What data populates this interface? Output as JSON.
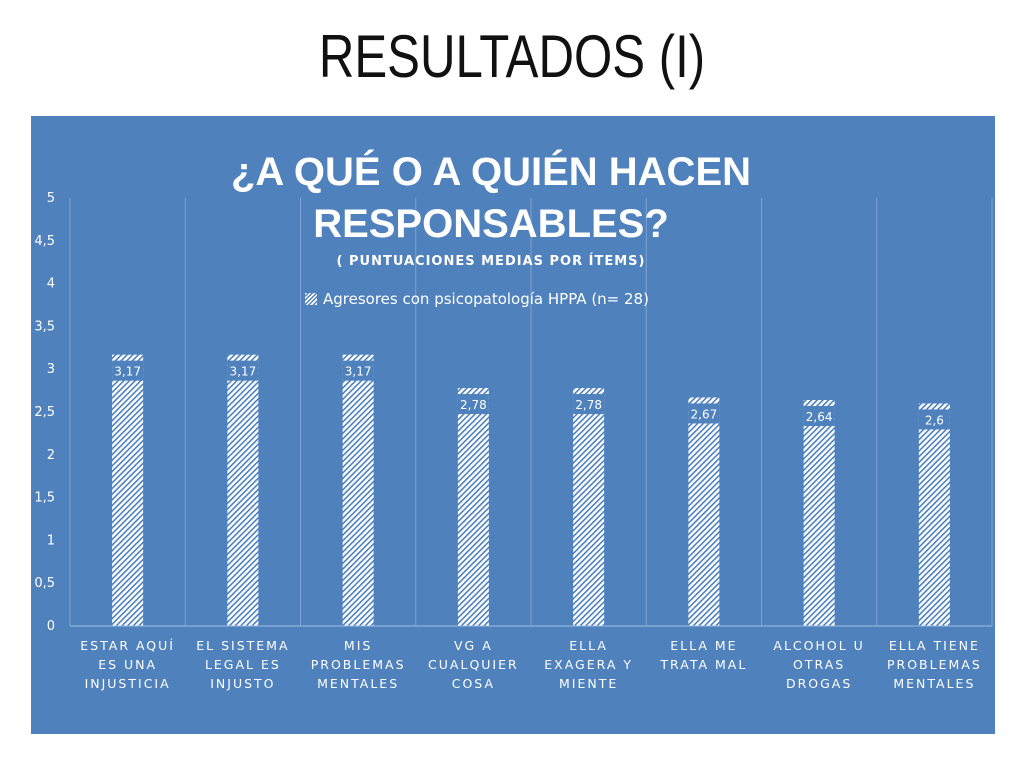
{
  "slide": {
    "title": "RESULTADOS (I)"
  },
  "chart_data": {
    "type": "bar",
    "title": "¿A QUÉ O A QUIÉN HACEN\nRESPONSABLES?",
    "subtitle": "( PUNTUACIONES MEDIAS POR ÍTEMS)",
    "categories": [
      "ESTAR AQUÍ ES UNA INJUSTICIA",
      "EL SISTEMA LEGAL ES INJUSTO",
      "MIS PROBLEMAS MENTALES",
      "VG A CUALQUIER COSA",
      "ELLA EXAGERA Y MIENTE",
      "ELLA ME TRATA MAL",
      "ALCOHOL U OTRAS DROGAS",
      "ELLA TIENE PROBLEMAS MENTALES"
    ],
    "category_lines": [
      [
        "ESTAR AQUÍ",
        "ES UNA",
        "INJUSTICIA"
      ],
      [
        "EL SISTEMA",
        "LEGAL ES",
        "INJUSTO"
      ],
      [
        "MIS",
        "PROBLEMAS",
        "MENTALES"
      ],
      [
        "VG A",
        "CUALQUIER",
        "COSA"
      ],
      [
        "ELLA",
        "EXAGERA Y",
        "MIENTE"
      ],
      [
        "ELLA ME",
        "TRATA MAL"
      ],
      [
        "ALCOHOL U",
        "OTRAS",
        "DROGAS"
      ],
      [
        "ELLA TIENE",
        "PROBLEMAS",
        "MENTALES"
      ]
    ],
    "series": [
      {
        "name": "Agresores con psicopatología HPPA (n= 28)",
        "values": [
          3.17,
          3.17,
          3.17,
          2.78,
          2.78,
          2.67,
          2.64,
          2.6
        ],
        "labels": [
          "3,17",
          "3,17",
          "3,17",
          "2,78",
          "2,78",
          "2,67",
          "2,64",
          "2,6"
        ]
      }
    ],
    "ylim": [
      0,
      5
    ],
    "yticks": [
      0,
      0.5,
      1,
      1.5,
      2,
      2.5,
      3,
      3.5,
      4,
      4.5,
      5
    ],
    "ytick_labels": [
      "0",
      "0,5",
      "1",
      "1,5",
      "2",
      "2,5",
      "3",
      "3,5",
      "4",
      "4,5",
      "5"
    ],
    "grid": "vertical category separators",
    "legend_position": "top-center",
    "colors": {
      "background": "#4f81bd",
      "bar": "#ffffff",
      "text": "#ffffff",
      "label_box": "#4f81bd"
    }
  }
}
